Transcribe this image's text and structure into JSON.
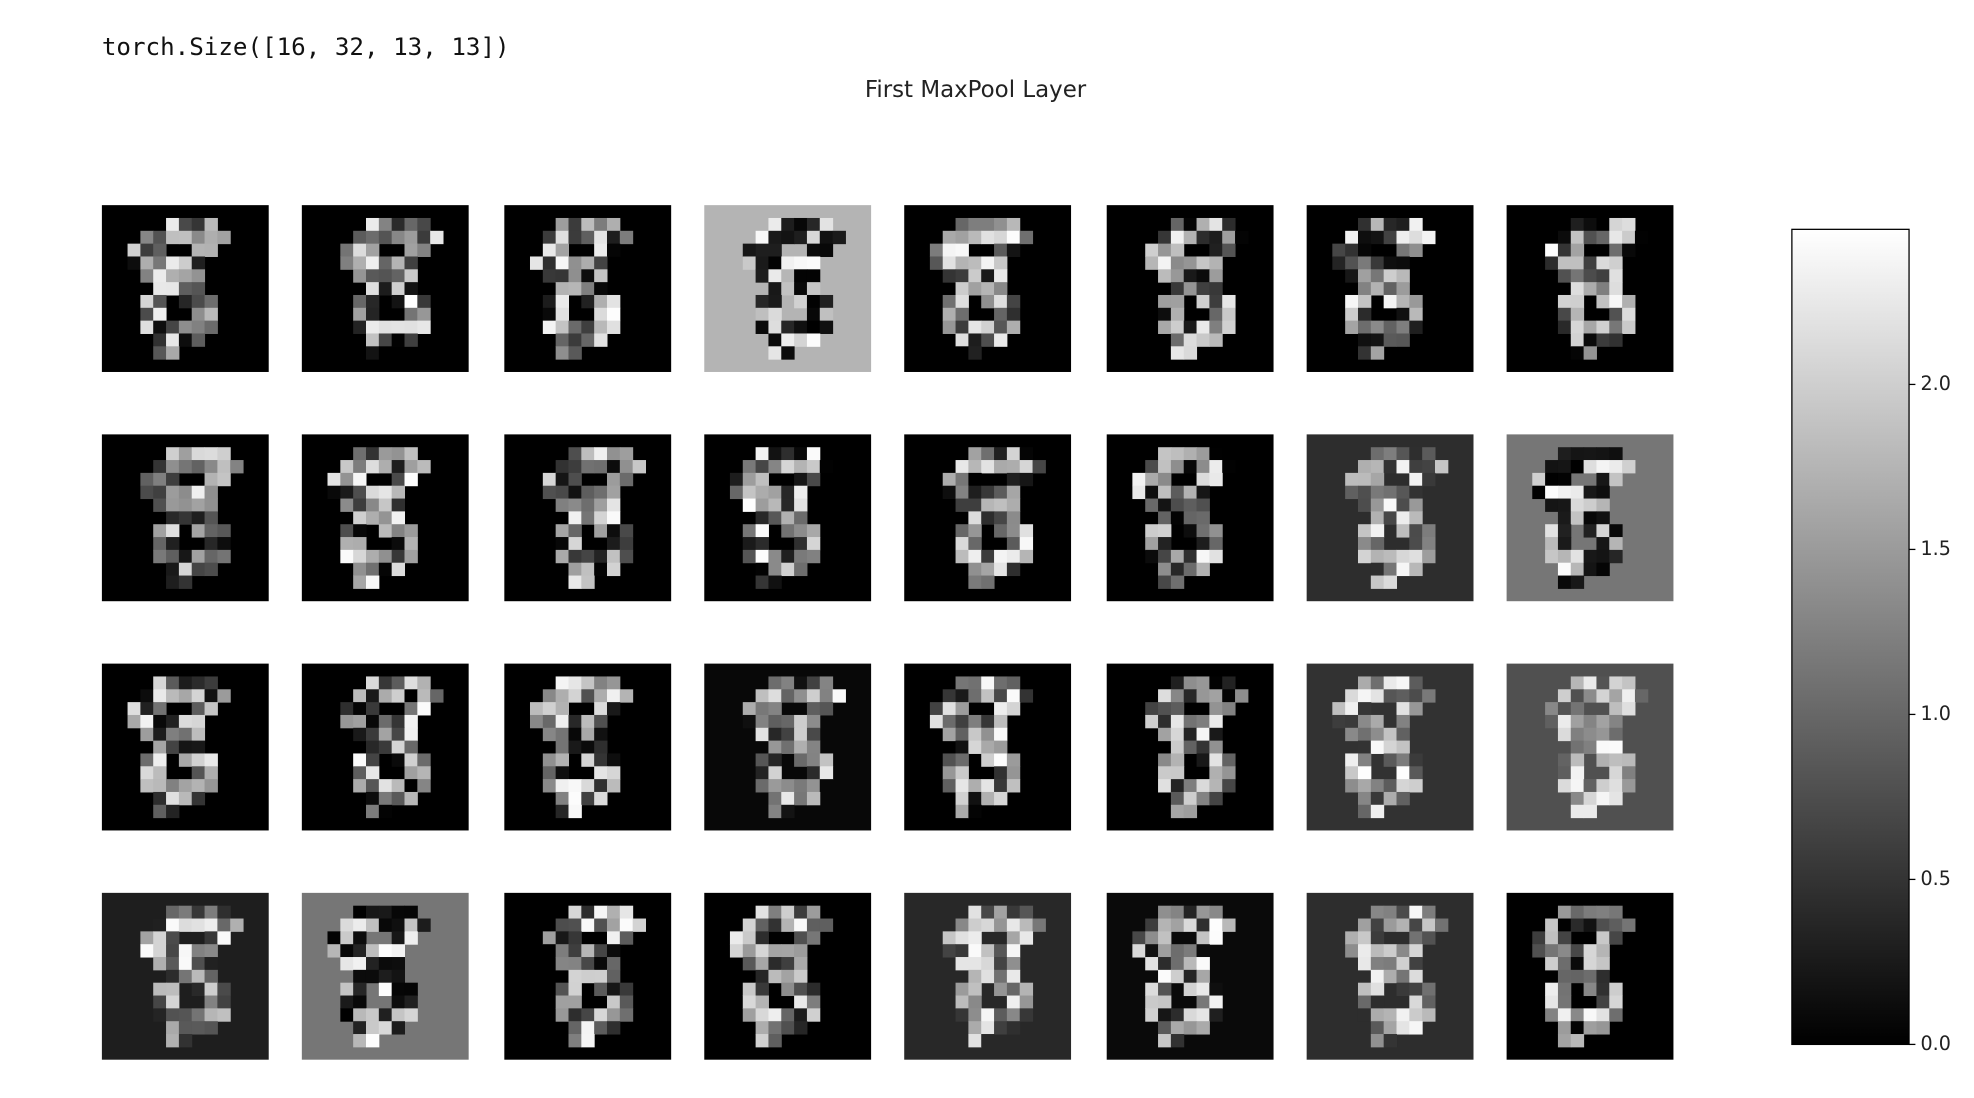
{
  "output_text": "torch.Size([16, 32, 13, 13])",
  "chart_data": {
    "type": "image-grid",
    "title": "First MaxPool Layer",
    "colormap": "gray",
    "ylim": [
      0,
      2.47
    ],
    "yticks": [
      {
        "value": 0,
        "label": "0.0"
      },
      0.5,
      {
        "value": 1,
        "label": "1.0"
      },
      1.5,
      {
        "value": 2,
        "label": "2.0"
      }
    ]
  }
}
